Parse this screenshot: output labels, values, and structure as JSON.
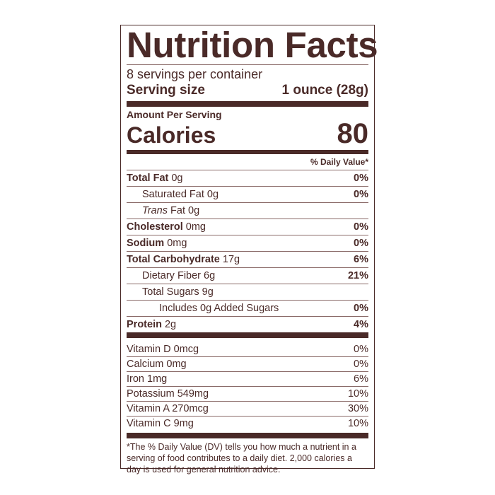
{
  "title": "Nutrition Facts",
  "servings_per_container": "8 servings per container",
  "serving_size": {
    "label": "Serving size",
    "value": "1 ounce (28g)"
  },
  "amount_per_serving": "Amount Per Serving",
  "calories": {
    "label": "Calories",
    "value": "80"
  },
  "dv_header": "% Daily Value*",
  "nutrients": [
    {
      "name": "Total Fat",
      "amount": " 0g",
      "dv": "0%",
      "bold": true,
      "indent": 0
    },
    {
      "name": "Saturated Fat 0g",
      "amount": "",
      "dv": "0%",
      "bold": false,
      "indent": 1
    },
    {
      "name": "Trans",
      "amount": " Fat 0g",
      "dv": "",
      "bold": false,
      "indent": 1,
      "italic": true
    },
    {
      "name": "Cholesterol",
      "amount": " 0mg",
      "dv": "0%",
      "bold": true,
      "indent": 0
    },
    {
      "name": "Sodium",
      "amount": " 0mg",
      "dv": "0%",
      "bold": true,
      "indent": 0
    },
    {
      "name": "Total Carbohydrate",
      "amount": " 17g",
      "dv": "6%",
      "bold": true,
      "indent": 0
    },
    {
      "name": "Dietary Fiber 6g",
      "amount": "",
      "dv": "21%",
      "bold": false,
      "indent": 1
    },
    {
      "name": "Total Sugars 9g",
      "amount": "",
      "dv": "",
      "bold": false,
      "indent": 1
    },
    {
      "name": "Includes 0g Added Sugars",
      "amount": "",
      "dv": "0%",
      "bold": false,
      "indent": 2
    },
    {
      "name": "Protein",
      "amount": " 2g",
      "dv": "4%",
      "bold": true,
      "indent": 0
    }
  ],
  "vitamins": [
    {
      "name": "Vitamin D 0mcg",
      "dv": "0%"
    },
    {
      "name": "Calcium 0mg",
      "dv": "0%"
    },
    {
      "name": "Iron 1mg",
      "dv": "6%"
    },
    {
      "name": "Potassium 549mg",
      "dv": "10%"
    },
    {
      "name": "Vitamin A 270mcg",
      "dv": "30%"
    },
    {
      "name": "Vitamin C 9mg",
      "dv": "10%"
    }
  ],
  "footnote": "*The % Daily Value (DV) tells you how much a nutrient in a serving of food contributes to a daily diet. 2,000 calories a day is used for general nutrition advice.",
  "colors": {
    "ink": "#4a2a28",
    "background": "#ffffff"
  }
}
